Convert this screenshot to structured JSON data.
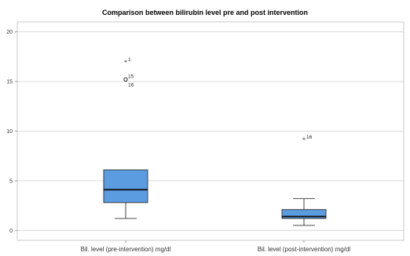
{
  "chart_data": {
    "type": "boxplot",
    "title": "Comparison between bilirubin level pre and post intervention",
    "xlabel": "",
    "ylabel": "",
    "ylim": [
      -1,
      21
    ],
    "yticks": [
      0,
      5,
      10,
      15,
      20
    ],
    "grid": true,
    "box_color": "#5b9be0",
    "boxes": [
      {
        "category": "Bil. level (pre-intervention) mg/dl",
        "min": 1.2,
        "q1": 2.8,
        "median": 4.1,
        "q3": 6.1,
        "max": 6.1,
        "outliers": [
          {
            "label": "1",
            "value": 16.9,
            "marker": "star"
          },
          {
            "label": "15",
            "value": 15.2,
            "marker": "circle"
          },
          {
            "label": "16",
            "value": 15.2,
            "marker": "circle"
          }
        ]
      },
      {
        "category": "Bil. level (post-intervention) mg/dl",
        "min": 0.5,
        "q1": 1.2,
        "median": 1.4,
        "q3": 2.1,
        "max": 3.2,
        "outliers": [
          {
            "label": "16",
            "value": 9.1,
            "marker": "star"
          }
        ]
      }
    ]
  }
}
